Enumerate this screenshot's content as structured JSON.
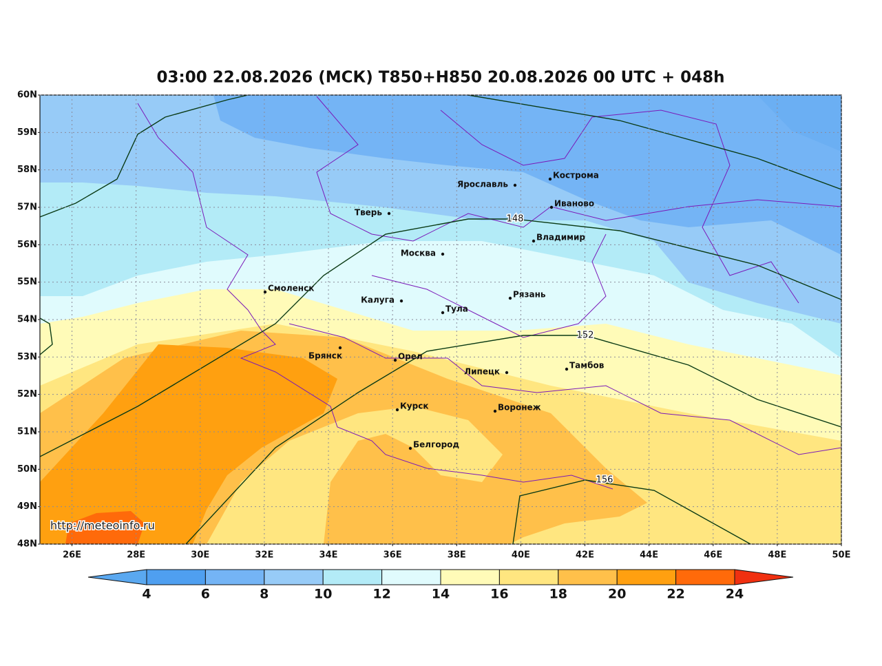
{
  "title": "03:00 22.08.2026 (МСК) T850+H850 20.08.2026 00 UTC + 048h",
  "map": {
    "lonlim": [
      25,
      50
    ],
    "latlim": [
      48,
      60
    ],
    "grid": true,
    "lat_ticks": [
      {
        "value": 48,
        "label": "48N"
      },
      {
        "value": 49,
        "label": "49N"
      },
      {
        "value": 50,
        "label": "50N"
      },
      {
        "value": 51,
        "label": "51N"
      },
      {
        "value": 52,
        "label": "52N"
      },
      {
        "value": 53,
        "label": "53N"
      },
      {
        "value": 54,
        "label": "54N"
      },
      {
        "value": 55,
        "label": "55N"
      },
      {
        "value": 56,
        "label": "56N"
      },
      {
        "value": 57,
        "label": "57N"
      },
      {
        "value": 58,
        "label": "58N"
      },
      {
        "value": 59,
        "label": "59N"
      },
      {
        "value": 60,
        "label": "60N"
      }
    ],
    "lon_ticks": [
      {
        "value": 26,
        "label": "26E"
      },
      {
        "value": 28,
        "label": "28E"
      },
      {
        "value": 30,
        "label": "30E"
      },
      {
        "value": 32,
        "label": "32E"
      },
      {
        "value": 34,
        "label": "34E"
      },
      {
        "value": 36,
        "label": "36E"
      },
      {
        "value": 38,
        "label": "38E"
      },
      {
        "value": 40,
        "label": "40E"
      },
      {
        "value": 42,
        "label": "42E"
      },
      {
        "value": 44,
        "label": "44E"
      },
      {
        "value": 46,
        "label": "46E"
      },
      {
        "value": 48,
        "label": "48E"
      },
      {
        "value": 50,
        "label": "50E"
      }
    ]
  },
  "cities": [
    "Ярославль",
    "Кострома",
    "Иваново",
    "Тверь",
    "Владимир",
    "Москва",
    "Смоленск",
    "Калуга",
    "Рязань",
    "Тула",
    "Брянск",
    "Орел",
    "Липецк",
    "Тамбов",
    "Курск",
    "Воронеж",
    "Белгород"
  ],
  "contour_labels": [
    148,
    152,
    156
  ],
  "colorbar": {
    "ticks": [
      4,
      6,
      8,
      10,
      12,
      14,
      16,
      18,
      20,
      22,
      24
    ],
    "colors": [
      "#4f9ff0",
      "#74b4f5",
      "#97cbf7",
      "#b3ebf7",
      "#e0fbfd",
      "#fffbb8",
      "#ffe680",
      "#ffc04a",
      "#ffa010",
      "#ff6a0a"
    ],
    "under": "#5aa8f0",
    "over": "#f03010"
  },
  "credit": "http://meteoinfo.ru"
}
